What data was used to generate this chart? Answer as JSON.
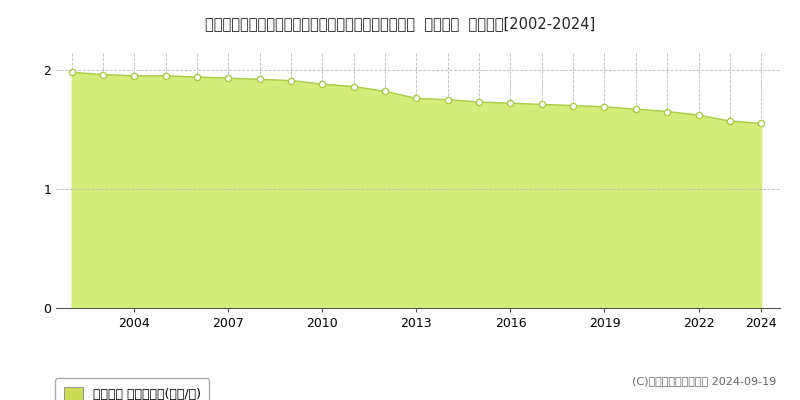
{
  "title": "福島県南会津郡只見町大字黒谷字六百苅１２２４番１  基準地価  地価推移[2002-2024]",
  "years": [
    2002,
    2003,
    2004,
    2005,
    2006,
    2007,
    2008,
    2009,
    2010,
    2011,
    2012,
    2013,
    2014,
    2015,
    2016,
    2017,
    2018,
    2019,
    2020,
    2021,
    2022,
    2023,
    2024
  ],
  "values": [
    1.98,
    1.96,
    1.95,
    1.95,
    1.94,
    1.93,
    1.92,
    1.91,
    1.88,
    1.86,
    1.82,
    1.76,
    1.75,
    1.73,
    1.72,
    1.71,
    1.7,
    1.69,
    1.67,
    1.65,
    1.62,
    1.57,
    1.55
  ],
  "fill_color": "#d4ed7a",
  "line_color": "#aacc44",
  "marker_facecolor": "#ffffff",
  "marker_edgecolor": "#aacc44",
  "background_color": "#ffffff",
  "grid_color": "#bbbbbb",
  "ylim": [
    0,
    2.15
  ],
  "yticks": [
    0,
    1,
    2
  ],
  "xticks": [
    2004,
    2007,
    2010,
    2013,
    2016,
    2019,
    2022,
    2024
  ],
  "legend_label": "基準地価 平均坪単価(万円/坪)",
  "legend_facecolor": "#ccdd55",
  "copyright_text": "(C)土地価格ドットコム 2024-09-19",
  "title_fontsize": 10.5,
  "axis_fontsize": 9,
  "legend_fontsize": 9,
  "copyright_fontsize": 8
}
